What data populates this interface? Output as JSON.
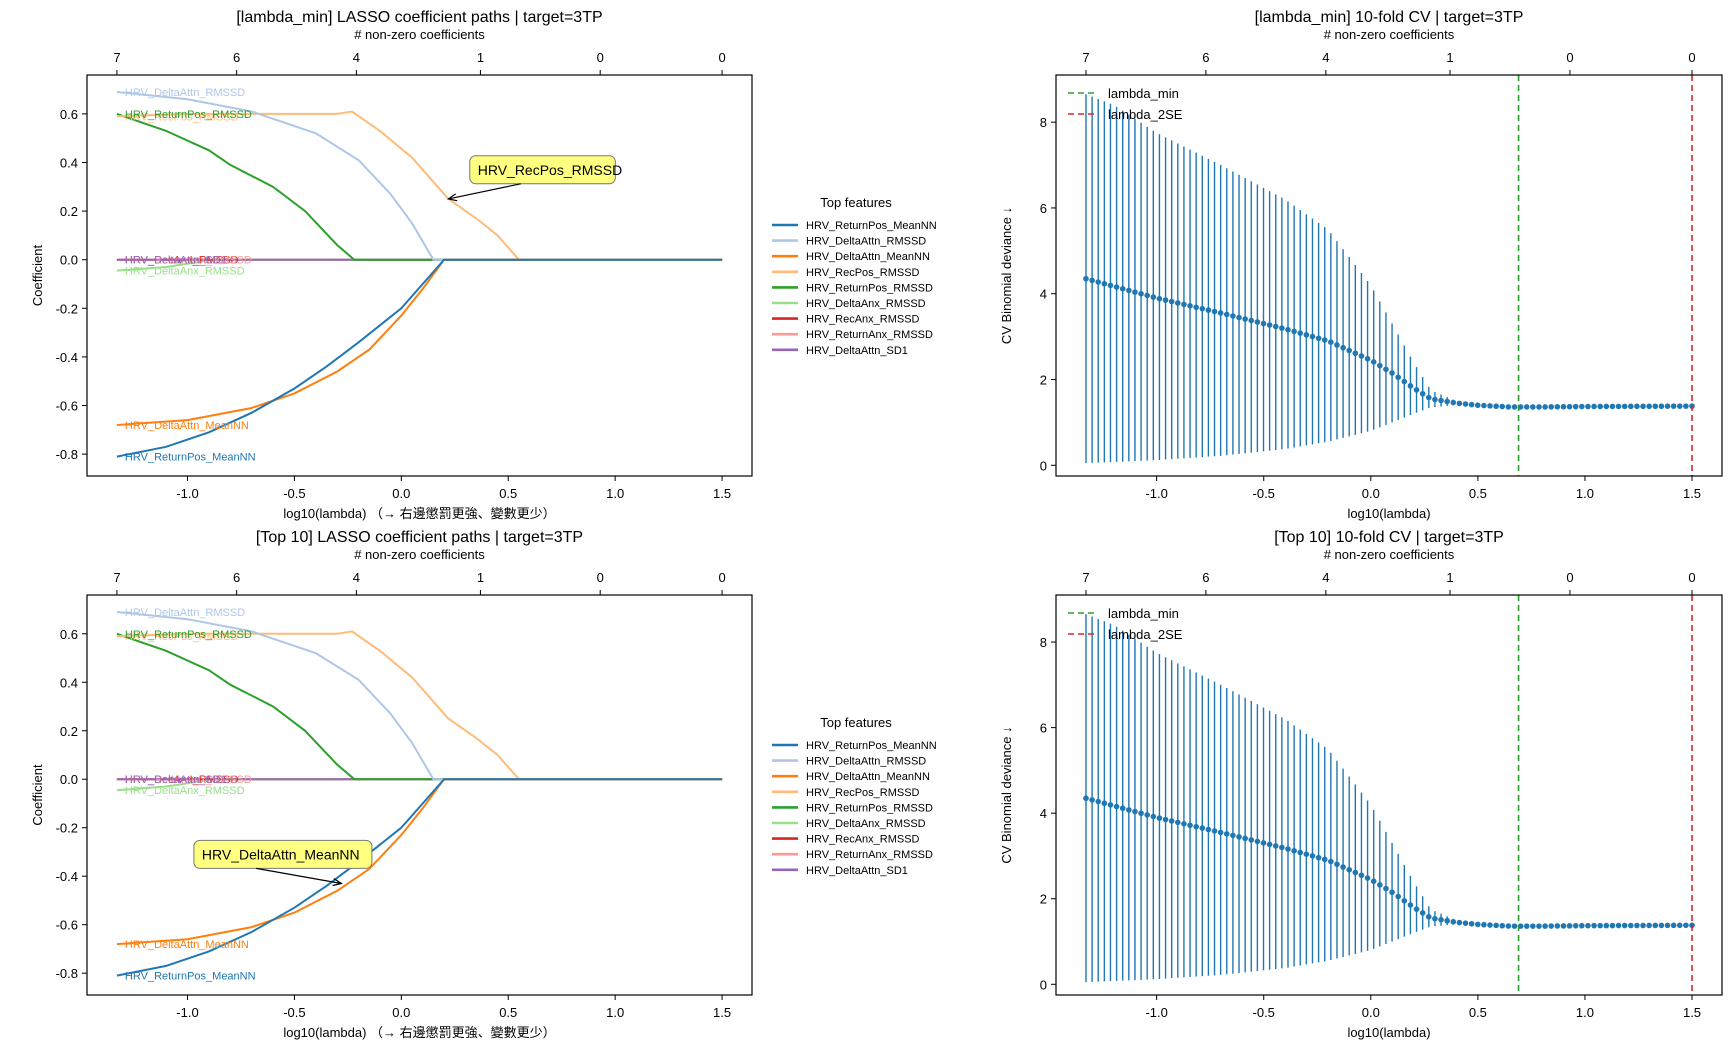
{
  "chart_data": [
    {
      "id": "tl",
      "type": "line",
      "title": "[lambda_min] LASSO coefficient paths  |  target=3TP",
      "secondary_xlabel": "# non-zero coefficients",
      "secondary_xticks": [
        {
          "x": -1.33,
          "label": "7"
        },
        {
          "x": -0.77,
          "label": "6"
        },
        {
          "x": -0.21,
          "label": "4"
        },
        {
          "x": 0.37,
          "label": "1"
        },
        {
          "x": 0.93,
          "label": "0"
        },
        {
          "x": 1.5,
          "label": "0"
        }
      ],
      "xlabel": "log10(lambda)  （→ 右邊懲罰更強、變數更少）",
      "ylabel": "Coefficient",
      "xlim": [
        -1.47,
        1.64
      ],
      "ylim": [
        -0.89,
        0.76
      ],
      "xticks": [
        -1.0,
        -0.5,
        0.0,
        0.5,
        1.0,
        1.5
      ],
      "xtick_labels": [
        "-1.0",
        "-0.5",
        "0.0",
        "0.5",
        "1.0",
        "1.5"
      ],
      "yticks": [
        -0.8,
        -0.6,
        -0.4,
        -0.2,
        0.0,
        0.2,
        0.4,
        0.6
      ],
      "ytick_labels": [
        "-0.8",
        "-0.6",
        "-0.4",
        "-0.2",
        "0.0",
        "0.2",
        "0.4",
        "0.6"
      ],
      "legend_title": "Top features",
      "legend_position": "outside-right",
      "annotation": {
        "text": "HRV_RecPos_RMSSD",
        "x": 0.22,
        "y": 0.25,
        "text_x": 0.32,
        "text_y": 0.37
      },
      "series": [
        {
          "name": "HRV_ReturnPos_MeanNN",
          "color": "#1f77b4",
          "label_y": -0.81,
          "x": [
            -1.33,
            -1.1,
            -0.9,
            -0.7,
            -0.5,
            -0.35,
            -0.2,
            0.0,
            0.1,
            0.2,
            1.5
          ],
          "y": [
            -0.81,
            -0.77,
            -0.71,
            -0.63,
            -0.53,
            -0.44,
            -0.34,
            -0.2,
            -0.1,
            0.0,
            0.0
          ]
        },
        {
          "name": "HRV_DeltaAttn_RMSSD",
          "color": "#aec7e8",
          "label_y": 0.69,
          "x": [
            -1.33,
            -1.0,
            -0.7,
            -0.4,
            -0.2,
            -0.05,
            0.05,
            0.15,
            1.5
          ],
          "y": [
            0.69,
            0.66,
            0.61,
            0.52,
            0.41,
            0.27,
            0.15,
            0.0,
            0.0
          ]
        },
        {
          "name": "HRV_DeltaAttn_MeanNN",
          "color": "#ff7f0e",
          "label_y": -0.68,
          "x": [
            -1.33,
            -1.0,
            -0.7,
            -0.5,
            -0.3,
            -0.15,
            0.0,
            0.1,
            0.2,
            1.5
          ],
          "y": [
            -0.68,
            -0.66,
            -0.61,
            -0.55,
            -0.46,
            -0.37,
            -0.23,
            -0.12,
            0.0,
            0.0
          ]
        },
        {
          "name": "HRV_RecPos_RMSSD",
          "color": "#ffbb78",
          "label_y": 0.59,
          "x": [
            -1.33,
            -1.0,
            -0.6,
            -0.3,
            -0.23,
            -0.1,
            0.05,
            0.22,
            0.35,
            0.45,
            0.55,
            1.5
          ],
          "y": [
            0.59,
            0.6,
            0.6,
            0.6,
            0.61,
            0.53,
            0.42,
            0.25,
            0.17,
            0.1,
            0.0,
            0.0
          ]
        },
        {
          "name": "HRV_ReturnPos_RMSSD",
          "color": "#2ca02c",
          "label_y": 0.6,
          "x": [
            -1.33,
            -1.1,
            -0.9,
            -0.8,
            -0.6,
            -0.45,
            -0.3,
            -0.22,
            1.5
          ],
          "y": [
            0.6,
            0.53,
            0.45,
            0.39,
            0.3,
            0.2,
            0.06,
            0.0,
            0.0
          ]
        },
        {
          "name": "HRV_DeltaAnx_RMSSD",
          "color": "#98df8a",
          "label_y": -0.045,
          "x": [
            -1.33,
            -1.1,
            -0.95,
            -0.9,
            1.5
          ],
          "y": [
            -0.045,
            -0.03,
            -0.01,
            0.0,
            0.0
          ]
        },
        {
          "name": "HRV_RecAnx_RMSSD",
          "color": "#d62728",
          "label_y": 0.0,
          "x": [
            -1.33,
            1.5
          ],
          "y": [
            0.0,
            0.0
          ]
        },
        {
          "name": "HRV_ReturnAnx_RMSSD",
          "color": "#ff9896",
          "label_y": 0.0,
          "x": [
            -1.33,
            1.5
          ],
          "y": [
            0.0,
            0.0
          ]
        },
        {
          "name": "HRV_DeltaAttn_SD1",
          "color": "#9467bd",
          "label_y": 0.0,
          "x": [
            -1.33,
            1.5
          ],
          "y": [
            0.0,
            0.0
          ]
        }
      ]
    },
    {
      "id": "tr",
      "type": "scatter",
      "title": "[lambda_min] 10-fold CV  |  target=3TP",
      "secondary_xlabel": "# non-zero coefficients",
      "secondary_xticks": [
        {
          "x": -1.33,
          "label": "7"
        },
        {
          "x": -0.77,
          "label": "6"
        },
        {
          "x": -0.21,
          "label": "4"
        },
        {
          "x": 0.37,
          "label": "1"
        },
        {
          "x": 0.93,
          "label": "0"
        },
        {
          "x": 1.5,
          "label": "0"
        }
      ],
      "xlabel": "log10(lambda)",
      "ylabel": "CV Binomial deviance ↓",
      "xlim": [
        -1.47,
        1.64
      ],
      "ylim": [
        -0.25,
        9.1
      ],
      "xticks": [
        -1.0,
        -0.5,
        0.0,
        0.5,
        1.0,
        1.5
      ],
      "xtick_labels": [
        "-1.0",
        "-0.5",
        "0.0",
        "0.5",
        "1.0",
        "1.5"
      ],
      "yticks": [
        0,
        2,
        4,
        6,
        8
      ],
      "ytick_labels": [
        "0",
        "2",
        "4",
        "6",
        "8"
      ],
      "legend_position": "upper-left",
      "vlines": [
        {
          "name": "lambda_min",
          "x": 0.69,
          "color": "#2ca02c"
        },
        {
          "name": "lambda_2SE",
          "x": 1.5,
          "color": "#d62728"
        }
      ],
      "marker_color": "#1f77b4",
      "cv": {
        "x_start": -1.33,
        "x_end": 1.5,
        "n": 100,
        "mean_points": [
          [
            -1.33,
            4.35
          ],
          [
            -1.0,
            3.9
          ],
          [
            -0.7,
            3.55
          ],
          [
            -0.4,
            3.18
          ],
          [
            -0.2,
            2.9
          ],
          [
            0.0,
            2.45
          ],
          [
            0.1,
            2.15
          ],
          [
            0.2,
            1.8
          ],
          [
            0.28,
            1.55
          ],
          [
            0.4,
            1.45
          ],
          [
            0.5,
            1.4
          ],
          [
            0.65,
            1.36
          ],
          [
            0.8,
            1.36
          ],
          [
            1.0,
            1.37
          ],
          [
            1.5,
            1.38
          ]
        ],
        "upper_points": [
          [
            -1.33,
            8.65
          ],
          [
            -1.2,
            8.4
          ],
          [
            -1.0,
            7.75
          ],
          [
            -0.7,
            7.0
          ],
          [
            -0.4,
            6.2
          ],
          [
            -0.2,
            5.5
          ],
          [
            0.0,
            4.2
          ],
          [
            0.1,
            3.3
          ],
          [
            0.2,
            2.4
          ],
          [
            0.28,
            1.75
          ],
          [
            0.4,
            1.5
          ],
          [
            0.5,
            1.42
          ],
          [
            0.6,
            1.38
          ],
          [
            1.5,
            1.39
          ]
        ],
        "lower_points": [
          [
            -1.33,
            0.05
          ],
          [
            -1.0,
            0.12
          ],
          [
            -0.7,
            0.22
          ],
          [
            -0.4,
            0.38
          ],
          [
            -0.2,
            0.55
          ],
          [
            0.0,
            0.8
          ],
          [
            0.1,
            1.0
          ],
          [
            0.2,
            1.2
          ],
          [
            0.28,
            1.35
          ],
          [
            0.4,
            1.4
          ],
          [
            0.5,
            1.38
          ],
          [
            0.6,
            1.35
          ],
          [
            1.5,
            1.37
          ]
        ]
      }
    },
    {
      "id": "bl",
      "type": "line",
      "title": "[Top 10] LASSO coefficient paths  |  target=3TP",
      "secondary_xlabel": "# non-zero coefficients",
      "secondary_xticks": [
        {
          "x": -1.33,
          "label": "7"
        },
        {
          "x": -0.77,
          "label": "6"
        },
        {
          "x": -0.21,
          "label": "4"
        },
        {
          "x": 0.37,
          "label": "1"
        },
        {
          "x": 0.93,
          "label": "0"
        },
        {
          "x": 1.5,
          "label": "0"
        }
      ],
      "xlabel": "log10(lambda)  （→ 右邊懲罰更強、變數更少）",
      "ylabel": "Coefficient",
      "xlim": [
        -1.47,
        1.64
      ],
      "ylim": [
        -0.89,
        0.76
      ],
      "xticks": [
        -1.0,
        -0.5,
        0.0,
        0.5,
        1.0,
        1.5
      ],
      "xtick_labels": [
        "-1.0",
        "-0.5",
        "0.0",
        "0.5",
        "1.0",
        "1.5"
      ],
      "yticks": [
        -0.8,
        -0.6,
        -0.4,
        -0.2,
        0.0,
        0.2,
        0.4,
        0.6
      ],
      "ytick_labels": [
        "-0.8",
        "-0.6",
        "-0.4",
        "-0.2",
        "0.0",
        "0.2",
        "0.4",
        "0.6"
      ],
      "legend_title": "Top features",
      "legend_position": "outside-right",
      "annotation": {
        "text": "HRV_DeltaAttn_MeanNN",
        "x": -0.28,
        "y": -0.43,
        "text_x": -0.97,
        "text_y": -0.31
      },
      "series_ref": "tl"
    },
    {
      "id": "br",
      "type": "scatter",
      "title": "[Top 10] 10-fold CV  |  target=3TP",
      "secondary_xlabel": "# non-zero coefficients",
      "xlabel": "log10(lambda)",
      "ylabel": "CV Binomial deviance ↓",
      "legend_position": "upper-left",
      "series_ref": "tr"
    }
  ]
}
